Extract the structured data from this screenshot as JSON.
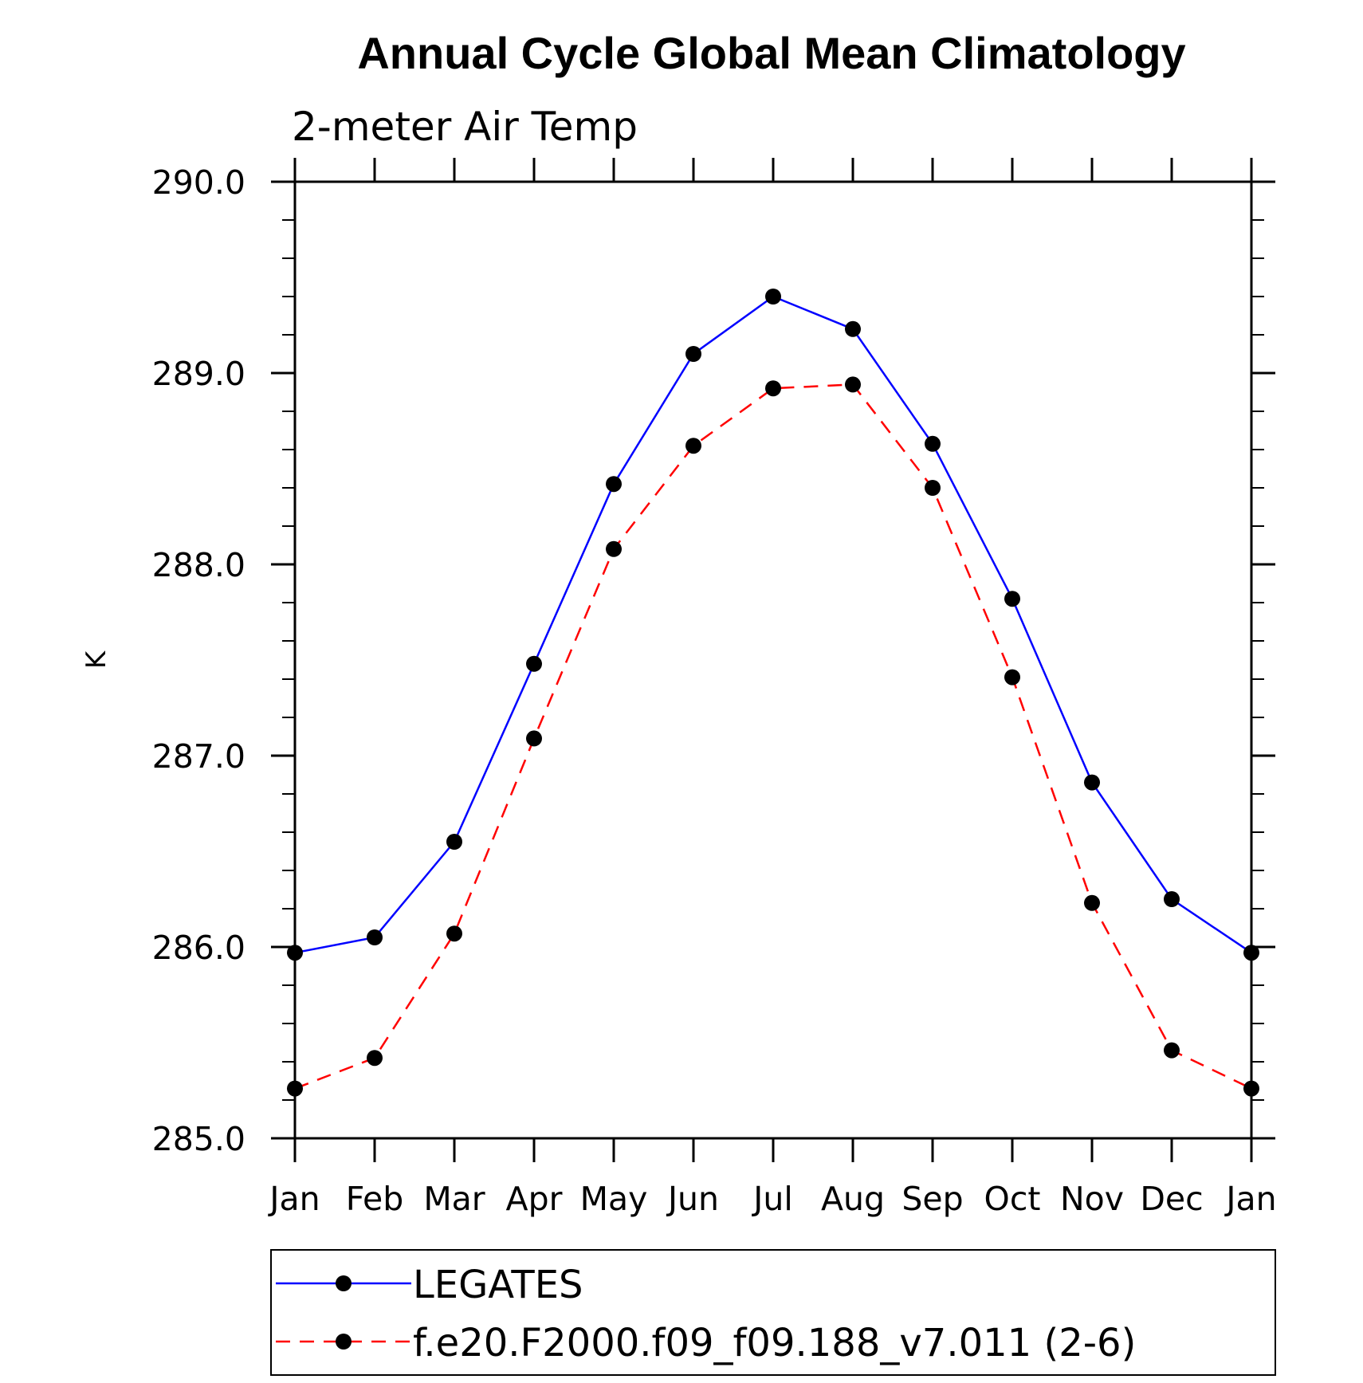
{
  "chart_data": {
    "type": "line",
    "title": "Annual Cycle Global Mean Climatology",
    "subtitle": "2-meter Air Temp",
    "ylabel": "K",
    "xlabel": "",
    "ylim": [
      285.0,
      290.0
    ],
    "yticks": [
      285.0,
      286.0,
      287.0,
      288.0,
      289.0,
      290.0
    ],
    "ytick_labels": [
      "285.0",
      "286.0",
      "287.0",
      "288.0",
      "289.0",
      "290.0"
    ],
    "categories": [
      "Jan",
      "Feb",
      "Mar",
      "Apr",
      "May",
      "Jun",
      "Jul",
      "Aug",
      "Sep",
      "Oct",
      "Nov",
      "Dec",
      "Jan"
    ],
    "series": [
      {
        "name": "LEGATES",
        "color": "#0000ff",
        "style": "solid",
        "marker": "filled-circle",
        "values": [
          285.97,
          286.05,
          286.55,
          287.48,
          288.42,
          289.1,
          289.4,
          289.23,
          288.63,
          287.82,
          286.86,
          286.25,
          285.97
        ]
      },
      {
        "name": "f.e20.F2000.f09_f09.188_v7.011 (2-6)",
        "color": "#ff0000",
        "style": "dashed",
        "marker": "filled-circle",
        "values": [
          285.26,
          285.42,
          286.07,
          287.09,
          288.08,
          288.62,
          288.92,
          288.94,
          288.4,
          287.41,
          286.23,
          285.46,
          285.26
        ]
      }
    ],
    "grid": false,
    "legend_position": "bottom"
  }
}
